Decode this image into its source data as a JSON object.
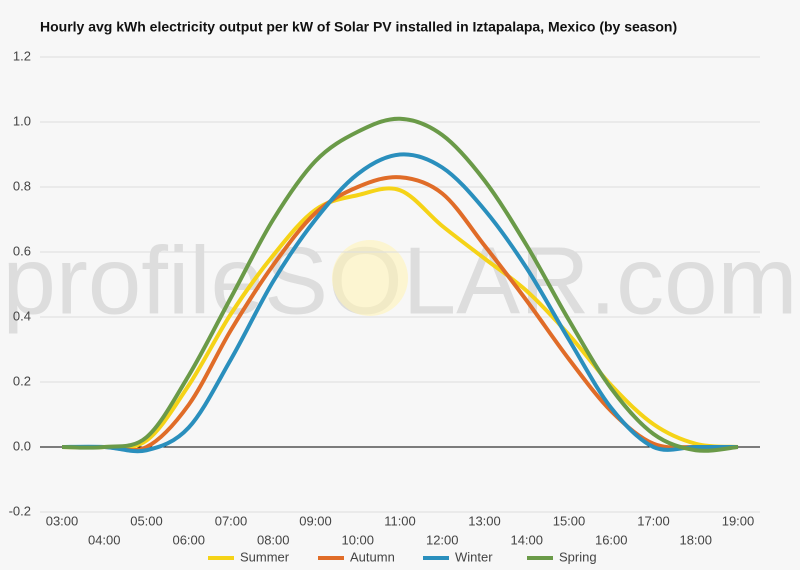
{
  "chart_data": {
    "type": "line",
    "title": "Hourly avg kWh electricity output per kW of Solar PV installed in Iztapalapa, Mexico (by season)",
    "watermark": "profileSOLAR.com",
    "categories": [
      "03:00",
      "04:00",
      "05:00",
      "06:00",
      "07:00",
      "08:00",
      "09:00",
      "10:00",
      "11:00",
      "12:00",
      "13:00",
      "14:00",
      "15:00",
      "16:00",
      "17:00",
      "18:00",
      "19:00"
    ],
    "series": [
      {
        "name": "Summer",
        "color": "#f5d317",
        "values": [
          0,
          0,
          0.02,
          0.19,
          0.41,
          0.59,
          0.73,
          0.775,
          0.79,
          0.68,
          0.58,
          0.48,
          0.345,
          0.19,
          0.07,
          0.01,
          0
        ]
      },
      {
        "name": "Autumn",
        "color": "#e06c28",
        "values": [
          0,
          0,
          0.0,
          0.13,
          0.36,
          0.56,
          0.72,
          0.8,
          0.83,
          0.78,
          0.62,
          0.45,
          0.27,
          0.11,
          0.01,
          0,
          0
        ]
      },
      {
        "name": "Winter",
        "color": "#2a8fbd",
        "values": [
          0,
          0,
          -0.01,
          0.06,
          0.27,
          0.51,
          0.7,
          0.84,
          0.9,
          0.86,
          0.73,
          0.55,
          0.33,
          0.12,
          0.0,
          0,
          0
        ]
      },
      {
        "name": "Spring",
        "color": "#6a9a48",
        "values": [
          0,
          0,
          0.03,
          0.22,
          0.46,
          0.7,
          0.88,
          0.97,
          1.01,
          0.96,
          0.82,
          0.62,
          0.39,
          0.18,
          0.04,
          -0.01,
          0
        ]
      }
    ],
    "ylim": [
      -0.2,
      1.2
    ],
    "yticks": [
      -0.2,
      {
        "value": 0,
        "label": "0.0"
      },
      0.2,
      0.4,
      0.6,
      0.8,
      {
        "value": 1,
        "label": "1.0"
      },
      1.2
    ],
    "grid": true
  }
}
